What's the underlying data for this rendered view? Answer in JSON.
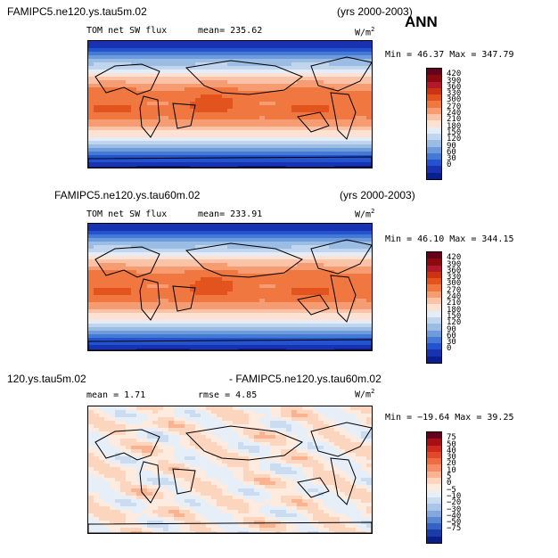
{
  "season": "ANN",
  "units": "W/m",
  "units_sup": "2",
  "panels": [
    {
      "id": "top",
      "case_name": "FAMIPC5.ne120.ys.tau5m.02",
      "years": "(yrs 2000-2003)",
      "field": "TOM net SW flux",
      "mean_text": "mean= 235.62",
      "minmax_text": "Min =  46.37 Max = 347.79",
      "colorbar_labels": [
        "420",
        "390",
        "360",
        "330",
        "300",
        "270",
        "240",
        "210",
        "180",
        "150",
        "120",
        "90",
        "60",
        "30",
        "0"
      ],
      "colors": [
        "#67001f",
        "#8b0a10",
        "#b2182b",
        "#cc3311",
        "#e2531d",
        "#f07740",
        "#f59c72",
        "#fac3a8",
        "#fde2d4",
        "#e4ecf7",
        "#c2d5ee",
        "#9bbce3",
        "#6e9bdb",
        "#4579d6",
        "#2453d0",
        "#1733b2",
        "#0a1f8f"
      ]
    },
    {
      "id": "middle",
      "case_name": "FAMIPC5.ne120.ys.tau60m.02",
      "years": "(yrs 2000-2003)",
      "field": "TOM net SW flux",
      "mean_text": "mean= 233.91",
      "minmax_text": "Min =  46.10 Max = 344.15",
      "colorbar_labels": [
        "420",
        "390",
        "360",
        "330",
        "300",
        "270",
        "240",
        "210",
        "180",
        "150",
        "120",
        "90",
        "60",
        "30",
        "0"
      ],
      "colors": [
        "#67001f",
        "#8b0a10",
        "#b2182b",
        "#cc3311",
        "#e2531d",
        "#f07740",
        "#f59c72",
        "#fac3a8",
        "#fde2d4",
        "#e4ecf7",
        "#c2d5ee",
        "#9bbce3",
        "#6e9bdb",
        "#4579d6",
        "#2453d0",
        "#1733b2",
        "#0a1f8f"
      ]
    },
    {
      "id": "bottom",
      "case_left": "120.ys.tau5m.02",
      "case_right": "- FAMIPC5.ne120.ys.tau60m.02",
      "mean_text": "mean =   1.71",
      "rmse_text": "rmse =   4.85",
      "minmax_text": "Min = −19.64 Max =  39.25",
      "colorbar_labels": [
        "75",
        "50",
        "40",
        "30",
        "20",
        "10",
        "5",
        "0",
        "−5",
        "−10",
        "−20",
        "−30",
        "−40",
        "−50",
        "−75"
      ],
      "colors": [
        "#67001f",
        "#a50f15",
        "#cb2a1c",
        "#e04a2a",
        "#ef6b42",
        "#f58e66",
        "#f9b391",
        "#fcd5bf",
        "#fdebe0",
        "#e6eef8",
        "#cbdcf0",
        "#a9c5e8",
        "#82a8dd",
        "#5a87d2",
        "#3462c5",
        "#1a3ca8",
        "#0b1d86"
      ]
    }
  ]
}
